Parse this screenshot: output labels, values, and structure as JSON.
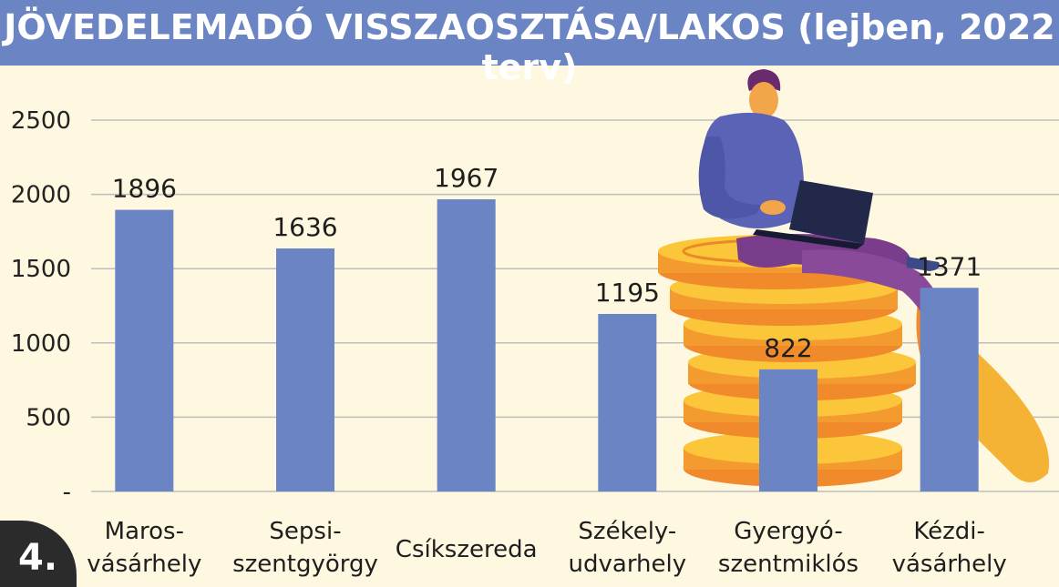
{
  "title": "JÖVEDELEMADÓ VISSZAOSZTÁSA/LAKOS (lejben, 2022 terv)",
  "badge": "4.",
  "colors": {
    "bar": "#6b84c3",
    "title_bg": "#6b84c3",
    "background": "#fdf8df",
    "badge_bg": "#2b2b2b"
  },
  "illustration": "person-with-laptop-on-coins",
  "chart_data": {
    "type": "bar",
    "title": "JÖVEDELEMADÓ VISSZAOSZTÁSA/LAKOS (lejben, 2022 terv)",
    "categories": [
      [
        "Maros-",
        "vásárhely"
      ],
      [
        "Sepsi-",
        "szentgyörgy"
      ],
      [
        "Csíkszereda"
      ],
      [
        "Székely-",
        "udvarhely"
      ],
      [
        "Gyergyó-",
        "szentmiklós"
      ],
      [
        "Kézdi-",
        "vásárhely"
      ]
    ],
    "values": [
      1896,
      1636,
      1967,
      1195,
      822,
      1371
    ],
    "data_labels": [
      "1896",
      "1636",
      "1967",
      "1195",
      "822",
      "1371"
    ],
    "ylim": [
      0,
      2500
    ],
    "yticks": [
      0,
      500,
      1000,
      1500,
      2000,
      2500
    ],
    "ytick_labels": [
      "-",
      "500",
      "1000",
      "1500",
      "2000",
      "2500"
    ],
    "grid": true,
    "legend": "none"
  }
}
